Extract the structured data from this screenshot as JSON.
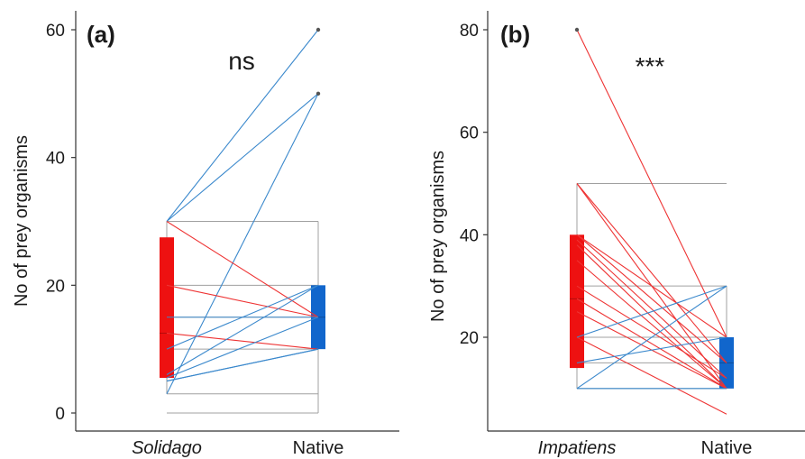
{
  "chart_data": [
    {
      "type": "box-paired",
      "panel_label": "(a)",
      "significance": "ns",
      "ylabel": "No of prey organisms",
      "ylim": [
        0,
        63
      ],
      "yticks": [
        0,
        20,
        40,
        60
      ],
      "ytick_labels": [
        "0",
        "20",
        "40",
        "60"
      ],
      "categories": [
        "Solidago",
        "Native"
      ],
      "category_italic": [
        true,
        false
      ],
      "colors": {
        "invasive": "#ee1111",
        "native": "#1166cc",
        "up": "#3a88cc",
        "down": "#ee3333",
        "whisker": "#a0a0a0"
      },
      "boxes": [
        {
          "category": "Solidago",
          "q1": 5.5,
          "median": 12.5,
          "q3": 27.5,
          "whisker_low": 3,
          "whisker_high": 30,
          "outliers": []
        },
        {
          "category": "Native",
          "q1": 10,
          "median": 15,
          "q3": 20,
          "whisker_low": 0,
          "whisker_high": 30,
          "outliers": [
            50,
            60
          ]
        }
      ],
      "pairs": [
        [
          30,
          60
        ],
        [
          30,
          50
        ],
        [
          3,
          50
        ],
        [
          30,
          15
        ],
        [
          20,
          15
        ],
        [
          15,
          15
        ],
        [
          12.5,
          10
        ],
        [
          10,
          20
        ],
        [
          6,
          20
        ],
        [
          5.5,
          15
        ],
        [
          5,
          10
        ],
        [
          5,
          10
        ]
      ]
    },
    {
      "type": "box-paired",
      "panel_label": "(b)",
      "significance": "***",
      "ylabel": "No of prey organisms",
      "ylim": [
        0,
        83
      ],
      "yticks": [
        20,
        40,
        60,
        80
      ],
      "ytick_labels": [
        "20",
        "40",
        "60",
        "80"
      ],
      "categories": [
        "Impatiens",
        "Native"
      ],
      "category_italic": [
        true,
        false
      ],
      "colors": {
        "invasive": "#ee1111",
        "native": "#1166cc",
        "up": "#3a88cc",
        "down": "#ee3333",
        "whisker": "#a0a0a0"
      },
      "boxes": [
        {
          "category": "Impatiens",
          "q1": 14,
          "median": 27.5,
          "q3": 40,
          "whisker_low": 10,
          "whisker_high": 50,
          "outliers": [
            80
          ]
        },
        {
          "category": "Native",
          "q1": 10,
          "median": 15,
          "q3": 20,
          "whisker_low": 10,
          "whisker_high": 30,
          "outliers": []
        }
      ],
      "pairs": [
        [
          80,
          20
        ],
        [
          50,
          15
        ],
        [
          50,
          10
        ],
        [
          40,
          20
        ],
        [
          40,
          15
        ],
        [
          39,
          12
        ],
        [
          38,
          10
        ],
        [
          35,
          10
        ],
        [
          30,
          12
        ],
        [
          27.5,
          10
        ],
        [
          25,
          10
        ],
        [
          20,
          5
        ],
        [
          20,
          30
        ],
        [
          15,
          20
        ],
        [
          10,
          30
        ],
        [
          10,
          10
        ]
      ]
    }
  ]
}
